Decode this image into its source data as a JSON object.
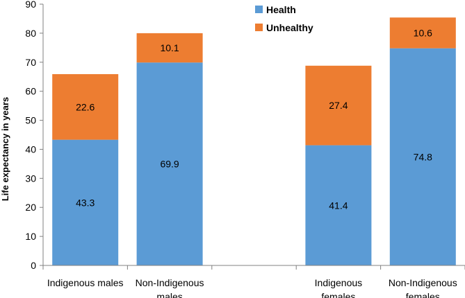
{
  "chart_data": {
    "type": "bar",
    "stacked": true,
    "title": "",
    "xlabel": "",
    "ylabel": "Life expectancy in years",
    "ylim": [
      0,
      90
    ],
    "ytick_step": 10,
    "grid": false,
    "legend_position": "top-center",
    "categories": [
      [
        "Indigenous males"
      ],
      [
        "Non-Indigenous",
        "males"
      ],
      [],
      [
        "Indigenous",
        "females"
      ],
      [
        "Non-Indigenous",
        "females"
      ]
    ],
    "series": [
      {
        "name": "Health",
        "color": "#5b9bd5",
        "values": [
          43.3,
          69.9,
          null,
          41.4,
          74.8
        ]
      },
      {
        "name": "Unhealthy",
        "color": "#ed7d31",
        "values": [
          22.6,
          10.1,
          null,
          27.4,
          10.6
        ]
      }
    ]
  }
}
